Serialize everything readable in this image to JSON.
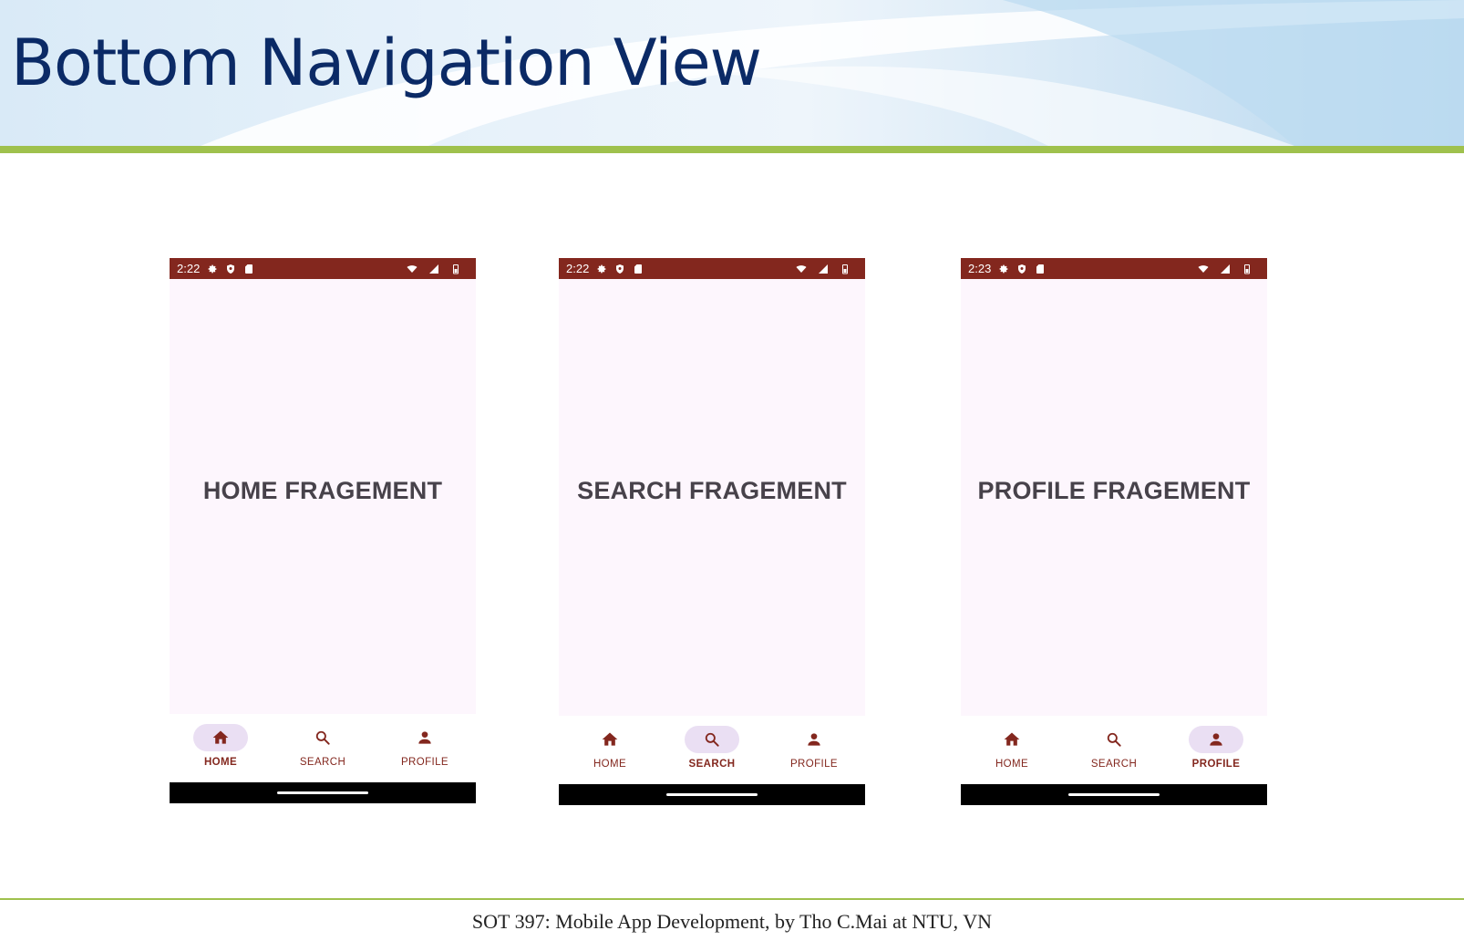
{
  "slide": {
    "title": "Bottom Navigation View",
    "footer": "SOT 397: Mobile App Development, by Tho C.Mai at NTU, VN",
    "colors": {
      "title": "#0b2a66",
      "rule": "#9fc14d"
    }
  },
  "app": {
    "colors": {
      "status_bar": "#83271e",
      "background": "#fdf6fd",
      "active_pill": "#eadff3",
      "nav_text": "#83271e"
    },
    "nav_labels": {
      "home": "HOME",
      "search": "SEARCH",
      "profile": "PROFILE"
    }
  },
  "phones": [
    {
      "time": "2:22",
      "fragment": "HOME FRAGEMENT",
      "active_tab": "HOME"
    },
    {
      "time": "2:22",
      "fragment": "SEARCH FRAGEMENT",
      "active_tab": "SEARCH"
    },
    {
      "time": "2:23",
      "fragment": "PROFILE FRAGEMENT",
      "active_tab": "PROFILE"
    }
  ],
  "icons": {
    "status_left": [
      "settings-icon",
      "shield-icon",
      "sd-card-icon"
    ],
    "status_right": [
      "wifi-icon",
      "cell-signal-icon",
      "battery-icon"
    ],
    "nav": [
      "home-icon",
      "search-icon",
      "person-icon"
    ]
  }
}
